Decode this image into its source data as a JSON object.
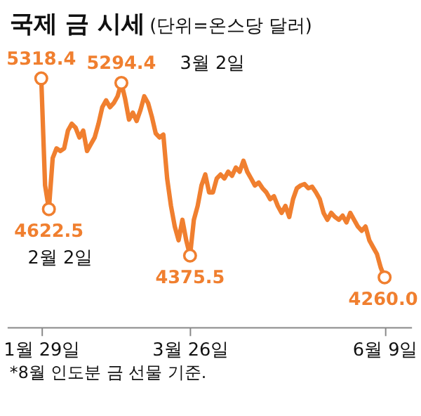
{
  "chart_data": {
    "type": "line",
    "title": "국제 금 시세",
    "subtitle": "(단위=온스당 달러)",
    "categories": [
      "1월 29일",
      null,
      null,
      null,
      null,
      null,
      null,
      null,
      null,
      null,
      null,
      null,
      null,
      null,
      null,
      null,
      null,
      null,
      null,
      null,
      null,
      null,
      null,
      null,
      null,
      null,
      null,
      null,
      null,
      null,
      null,
      null,
      null,
      null,
      null,
      null,
      null,
      null,
      null,
      "3월 26일",
      null,
      null,
      null,
      null,
      null,
      null,
      null,
      null,
      null,
      null,
      null,
      null,
      null,
      null,
      null,
      null,
      null,
      null,
      null,
      null,
      null,
      null,
      null,
      null,
      null,
      null,
      null,
      null,
      null,
      null,
      null,
      null,
      null,
      null,
      null,
      null,
      null,
      null,
      null,
      null,
      null,
      null,
      null,
      null,
      null,
      null,
      null,
      null,
      null,
      null,
      "6월 9일"
    ],
    "series": [
      {
        "color": "#f07f2f",
        "values": [
          5318.4,
          4749,
          4622.5,
          4895,
          4946,
          4932,
          4946,
          5041,
          5077,
          5056,
          5004,
          5041,
          4932,
          4968,
          5004,
          5077,
          5165,
          5202,
          5165,
          5187,
          5223,
          5294.4,
          5209,
          5099,
          5136,
          5092,
          5150,
          5223,
          5187,
          5114,
          5026,
          5004,
          5019,
          4786,
          4640,
          4530,
          4457,
          4566,
          4457,
          4375.5,
          4566,
          4640,
          4749,
          4807,
          4712,
          4712,
          4786,
          4807,
          4786,
          4822,
          4800,
          4844,
          4822,
          4880,
          4822,
          4786,
          4749,
          4764,
          4734,
          4712,
          4676,
          4691,
          4640,
          4603,
          4640,
          4581,
          4676,
          4734,
          4749,
          4756,
          4734,
          4742,
          4712,
          4676,
          4603,
          4566,
          4603,
          4581,
          4566,
          4588,
          4552,
          4603,
          4566,
          4530,
          4508,
          4530,
          4457,
          4420,
          4384,
          4311,
          4260.0
        ],
        "value_labels": [
          "5318.4",
          null,
          "4622.5",
          null,
          null,
          null,
          null,
          null,
          null,
          null,
          null,
          null,
          null,
          null,
          null,
          null,
          null,
          null,
          null,
          null,
          null,
          "5294.4",
          null,
          null,
          null,
          null,
          null,
          null,
          null,
          null,
          null,
          null,
          null,
          null,
          null,
          null,
          null,
          null,
          null,
          "4375.5",
          null,
          null,
          null,
          null,
          null,
          null,
          null,
          null,
          null,
          null,
          null,
          null,
          null,
          null,
          null,
          null,
          null,
          null,
          null,
          null,
          null,
          null,
          null,
          null,
          null,
          null,
          null,
          null,
          null,
          null,
          null,
          null,
          null,
          null,
          null,
          null,
          null,
          null,
          null,
          null,
          null,
          null,
          null,
          null,
          null,
          null,
          null,
          null,
          null,
          null,
          "4260.0"
        ]
      }
    ],
    "line_style": "solid",
    "annotations": [
      "3월 2일",
      "2월 2일",
      "*8월 인도분 금 선물 기준."
    ]
  }
}
